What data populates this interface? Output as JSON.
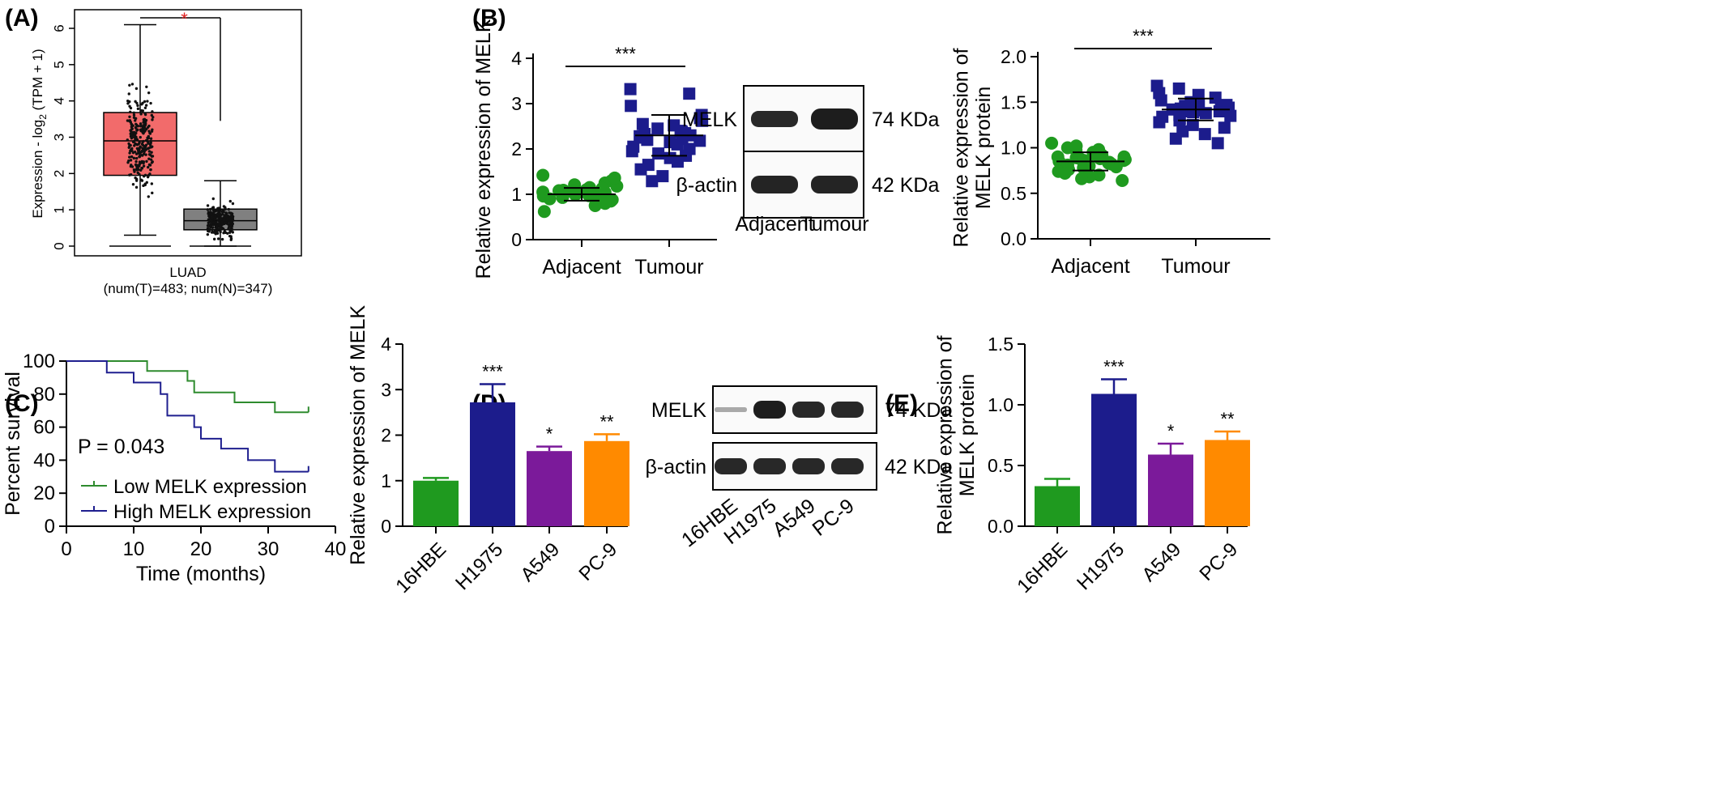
{
  "panel_labels": {
    "A": "(A)",
    "B": "(B)",
    "C": "(C)",
    "D": "(D)",
    "E": "(E)"
  },
  "colors": {
    "tumor_box": "#f26b6b",
    "normal_box": "#808080",
    "green": "#1f9a1f",
    "navy": "#1c1c8c",
    "purple": "#7b1a9a",
    "orange": "#ff8a00",
    "km_low": "#2e8b2e",
    "km_high": "#1f1f8f",
    "sig_red": "#e02020"
  },
  "chart_data": [
    {
      "id": "A",
      "type": "box",
      "ylabel": "Expression - log2 (TPM + 1)",
      "ylabel_parts": [
        "Expression - log",
        "2",
        " (TPM + 1)"
      ],
      "yticks": [
        "0",
        "1",
        "2",
        "3",
        "4",
        "5",
        "6"
      ],
      "ylim": [
        -0.2,
        6.6
      ],
      "xlabel_lines": [
        "LUAD",
        "(num(T)=483; num(N)=347)"
      ],
      "significance": "*",
      "boxes": [
        {
          "name": "T",
          "whisker_low": 0.3,
          "q1": 1.95,
          "median": 2.9,
          "q3": 3.68,
          "whisker_high": 6.1,
          "floor": 0,
          "n_points": 483,
          "point_max": 5.8,
          "color": "#f26b6b"
        },
        {
          "name": "N",
          "whisker_low": 0.0,
          "q1": 0.45,
          "median": 0.7,
          "q3": 1.02,
          "whisker_high": 1.8,
          "floor": 0,
          "n_points": 347,
          "point_max": 3.4,
          "color": "#808080"
        }
      ]
    },
    {
      "id": "B1",
      "type": "scatter",
      "ylabel": "Relative expression of MELK",
      "ylim": [
        0,
        4
      ],
      "yticks": [
        "0",
        "1",
        "2",
        "3",
        "4"
      ],
      "categories": [
        "Adjacent",
        "Tumour"
      ],
      "series": [
        {
          "name": "Adjacent",
          "mean": 1.0,
          "sd": 0.14,
          "marker": "circle",
          "color": "#1f9a1f",
          "values": [
            1.05,
            0.98,
            1.12,
            0.92,
            1.21,
            1.02,
            0.88,
            1.15,
            0.95,
            1.08,
            1.3,
            0.62,
            1.01,
            0.97,
            1.1,
            0.9,
            1.25,
            1.04,
            0.85,
            1.18,
            0.99,
            1.07,
            0.93,
            1.13,
            1.42,
            0.8,
            1.03,
            0.96,
            1.09,
            1.36,
            0.75,
            1.0
          ]
        },
        {
          "name": "Tumour",
          "mean": 2.3,
          "sd": 0.45,
          "marker": "square",
          "color": "#1c1c8c",
          "values": [
            3.32,
            3.22,
            2.95,
            2.75,
            2.62,
            2.52,
            2.45,
            2.4,
            2.35,
            2.33,
            2.3,
            2.28,
            2.25,
            2.22,
            2.2,
            2.15,
            2.1,
            2.05,
            2.0,
            1.95,
            1.9,
            1.85,
            1.8,
            1.72,
            1.65,
            1.55,
            1.4,
            1.29,
            2.55,
            2.38,
            2.18,
            2.68
          ]
        }
      ],
      "significance": "***"
    },
    {
      "id": "B_blot",
      "type": "western-blot",
      "rows": [
        {
          "label": "MELK",
          "size": "74 KDa"
        },
        {
          "label": "β-actin",
          "size": "42 KDa"
        }
      ],
      "lanes": [
        "Adjacent",
        "Tumour"
      ]
    },
    {
      "id": "B2",
      "type": "scatter",
      "ylabel_lines": [
        "Relative expression of",
        "MELK protein"
      ],
      "ylim": [
        0,
        2.0
      ],
      "yticks": [
        "0.0",
        "0.5",
        "1.0",
        "1.5",
        "2.0"
      ],
      "categories": [
        "Adjacent",
        "Tumour"
      ],
      "series": [
        {
          "name": "Adjacent",
          "mean": 0.85,
          "sd": 0.1,
          "marker": "circle",
          "color": "#1f9a1f",
          "values": [
            1.05,
            1.0,
            0.98,
            0.95,
            0.93,
            0.92,
            0.9,
            0.89,
            0.88,
            0.87,
            0.86,
            0.85,
            0.84,
            0.83,
            0.82,
            0.81,
            0.8,
            0.79,
            0.78,
            0.76,
            0.74,
            0.72,
            0.7,
            0.68,
            0.66,
            0.64,
            0.9,
            0.88,
            0.86,
            0.84,
            0.97,
            1.02
          ]
        },
        {
          "name": "Tumour",
          "mean": 1.42,
          "sd": 0.12,
          "marker": "square",
          "color": "#1c1c8c",
          "values": [
            1.68,
            1.65,
            1.6,
            1.55,
            1.52,
            1.5,
            1.48,
            1.46,
            1.45,
            1.44,
            1.43,
            1.42,
            1.41,
            1.4,
            1.4,
            1.38,
            1.36,
            1.34,
            1.32,
            1.3,
            1.28,
            1.25,
            1.22,
            1.18,
            1.15,
            1.1,
            1.05,
            1.47,
            1.44,
            1.39,
            1.58,
            1.35
          ]
        }
      ],
      "significance": "***"
    },
    {
      "id": "C",
      "type": "line",
      "ylabel": "Percent survival",
      "xlabel": "Time (months)",
      "xlim": [
        0,
        40
      ],
      "ylim": [
        0,
        100
      ],
      "xticks": [
        "0",
        "10",
        "20",
        "30",
        "40"
      ],
      "yticks": [
        "0",
        "20",
        "40",
        "60",
        "80",
        "100"
      ],
      "annotation": "P = 0.043",
      "series": [
        {
          "name": "Low MELK expression",
          "color": "#2e8b2e",
          "x": [
            0,
            12,
            12,
            18,
            18,
            19,
            19,
            25,
            25,
            31,
            31,
            36
          ],
          "y": [
            100,
            100,
            94,
            94,
            88,
            88,
            81,
            81,
            75,
            75,
            69,
            69
          ]
        },
        {
          "name": "High MELK expression",
          "color": "#1f1f8f",
          "x": [
            0,
            6,
            6,
            10,
            10,
            14,
            14,
            15,
            15,
            19,
            19,
            20,
            20,
            23,
            23,
            27,
            27,
            31,
            31,
            36
          ],
          "y": [
            100,
            100,
            93,
            93,
            87,
            87,
            80,
            80,
            67,
            67,
            60,
            60,
            53,
            53,
            47,
            47,
            40,
            40,
            33,
            33
          ]
        }
      ]
    },
    {
      "id": "D",
      "type": "bar",
      "ylabel": "Relative expression of MELK",
      "ylim": [
        0,
        4
      ],
      "yticks": [
        "0",
        "1",
        "2",
        "3",
        "4"
      ],
      "categories": [
        "16HBE",
        "H1975",
        "A549",
        "PC-9"
      ],
      "values": [
        1.0,
        2.72,
        1.65,
        1.87
      ],
      "errors": [
        0.06,
        0.4,
        0.1,
        0.15
      ],
      "significance": [
        "",
        "***",
        "*",
        "**"
      ]
    },
    {
      "id": "E_blot",
      "type": "western-blot",
      "rows": [
        {
          "label": "MELK",
          "size": "74 KDa"
        },
        {
          "label": "β-actin",
          "size": "42 KDa"
        }
      ],
      "lanes": [
        "16HBE",
        "H1975",
        "A549",
        "PC-9"
      ]
    },
    {
      "id": "E",
      "type": "bar",
      "ylabel_lines": [
        "Relative expression of",
        "MELK protein"
      ],
      "ylim": [
        0,
        1.5
      ],
      "yticks": [
        "0.0",
        "0.5",
        "1.0",
        "1.5"
      ],
      "categories": [
        "16HBE",
        "H1975",
        "A549",
        "PC-9"
      ],
      "values": [
        0.33,
        1.09,
        0.59,
        0.71
      ],
      "errors": [
        0.06,
        0.12,
        0.09,
        0.07
      ],
      "significance": [
        "",
        "***",
        "*",
        "**"
      ]
    }
  ]
}
